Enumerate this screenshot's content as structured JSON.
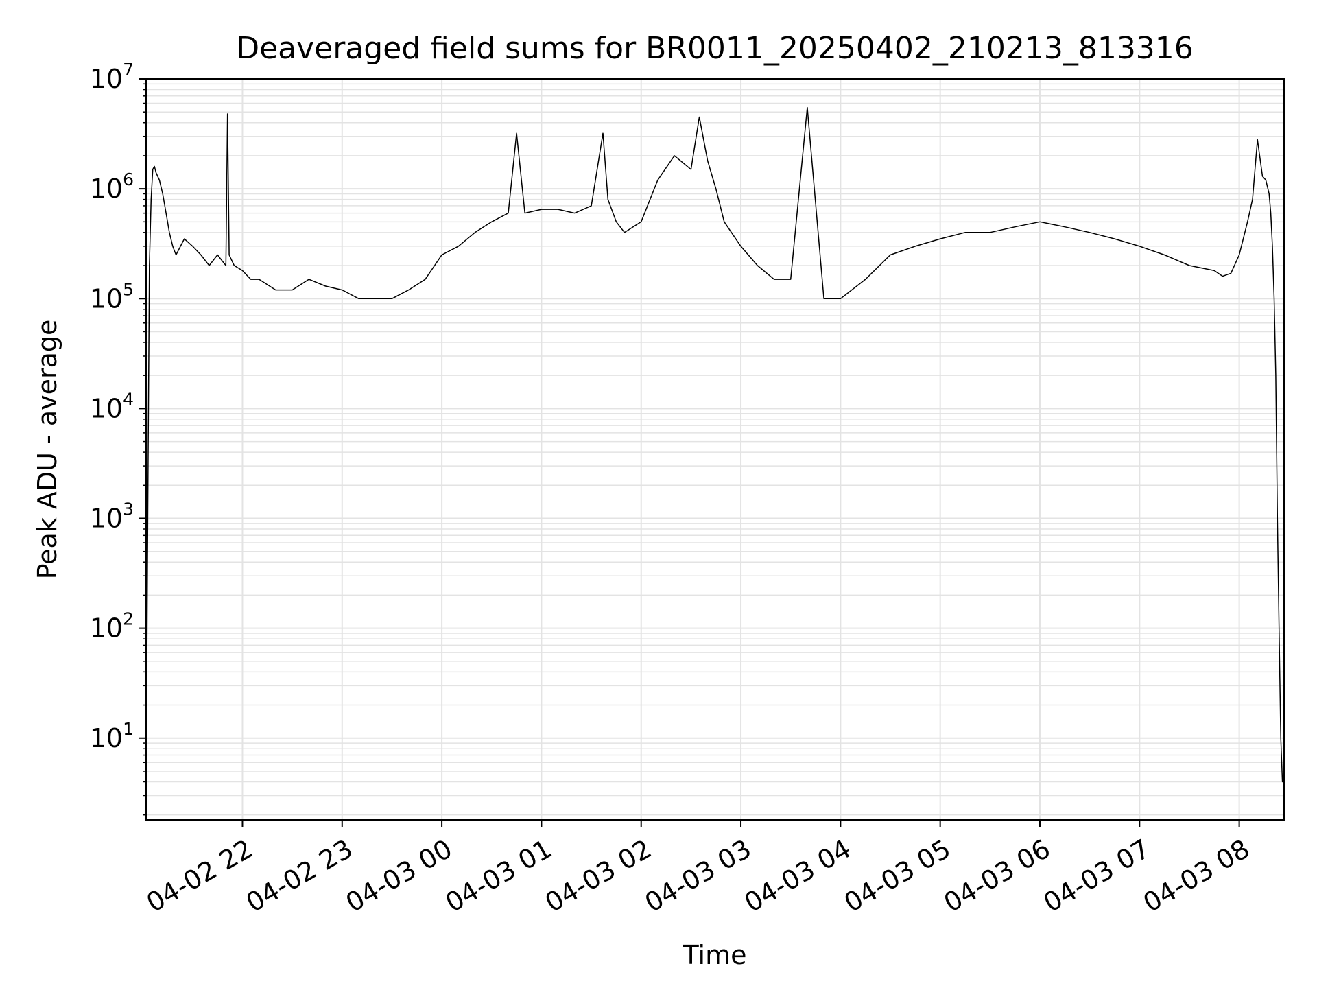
{
  "chart_data": {
    "type": "line",
    "title": "Deaveraged field sums for BR0011_20250402_210213_813316",
    "xlabel": "Time",
    "ylabel": "Peak ADU - average",
    "yscale": "log",
    "ylim": [
      1.8,
      10000000
    ],
    "xlim": [
      "2025-04-02 21:02",
      "2025-04-03 08:27"
    ],
    "grid": true,
    "line_color": "#000000",
    "grid_color": "#e3e3e3",
    "x_ticks": [
      {
        "value": "2025-04-02 22:00",
        "label": "04-02 22"
      },
      {
        "value": "2025-04-02 23:00",
        "label": "04-02 23"
      },
      {
        "value": "2025-04-03 00:00",
        "label": "04-03 00"
      },
      {
        "value": "2025-04-03 01:00",
        "label": "04-03 01"
      },
      {
        "value": "2025-04-03 02:00",
        "label": "04-03 02"
      },
      {
        "value": "2025-04-03 03:00",
        "label": "04-03 03"
      },
      {
        "value": "2025-04-03 04:00",
        "label": "04-03 04"
      },
      {
        "value": "2025-04-03 05:00",
        "label": "04-03 05"
      },
      {
        "value": "2025-04-03 06:00",
        "label": "04-03 06"
      },
      {
        "value": "2025-04-03 07:00",
        "label": "04-03 07"
      },
      {
        "value": "2025-04-03 08:00",
        "label": "04-03 08"
      }
    ],
    "y_ticks": [
      {
        "value": 10,
        "base": "10",
        "exp": "1"
      },
      {
        "value": 100,
        "base": "10",
        "exp": "2"
      },
      {
        "value": 1000,
        "base": "10",
        "exp": "3"
      },
      {
        "value": 10000,
        "base": "10",
        "exp": "4"
      },
      {
        "value": 100000,
        "base": "10",
        "exp": "5"
      },
      {
        "value": 1000000,
        "base": "10",
        "exp": "6"
      },
      {
        "value": 10000000,
        "base": "10",
        "exp": "7"
      }
    ],
    "series": [
      {
        "x": [
          "2025-04-02 21:02",
          "2025-04-02 21:02",
          "2025-04-02 21:03",
          "2025-04-02 21:04",
          "2025-04-02 21:05",
          "2025-04-02 21:06",
          "2025-04-02 21:07",
          "2025-04-02 21:08",
          "2025-04-02 21:10",
          "2025-04-02 21:12",
          "2025-04-02 21:14",
          "2025-04-02 21:16",
          "2025-04-02 21:18",
          "2025-04-02 21:20",
          "2025-04-02 21:25",
          "2025-04-02 21:30",
          "2025-04-02 21:35",
          "2025-04-02 21:40",
          "2025-04-02 21:45",
          "2025-04-02 21:50",
          "2025-04-02 21:51",
          "2025-04-02 21:52",
          "2025-04-02 21:55",
          "2025-04-02 22:00",
          "2025-04-02 22:05",
          "2025-04-02 22:10",
          "2025-04-02 22:20",
          "2025-04-02 22:30",
          "2025-04-02 22:40",
          "2025-04-02 22:50",
          "2025-04-02 23:00",
          "2025-04-02 23:10",
          "2025-04-02 23:20",
          "2025-04-02 23:30",
          "2025-04-02 23:40",
          "2025-04-02 23:50",
          "2025-04-03 00:00",
          "2025-04-03 00:10",
          "2025-04-03 00:20",
          "2025-04-03 00:30",
          "2025-04-03 00:40",
          "2025-04-03 00:45",
          "2025-04-03 00:50",
          "2025-04-03 01:00",
          "2025-04-03 01:10",
          "2025-04-03 01:20",
          "2025-04-03 01:30",
          "2025-04-03 01:37",
          "2025-04-03 01:40",
          "2025-04-03 01:45",
          "2025-04-03 01:50",
          "2025-04-03 02:00",
          "2025-04-03 02:10",
          "2025-04-03 02:20",
          "2025-04-03 02:30",
          "2025-04-03 02:35",
          "2025-04-03 02:40",
          "2025-04-03 02:45",
          "2025-04-03 02:50",
          "2025-04-03 03:00",
          "2025-04-03 03:10",
          "2025-04-03 03:20",
          "2025-04-03 03:30",
          "2025-04-03 03:40",
          "2025-04-03 03:50",
          "2025-04-03 04:00",
          "2025-04-03 04:15",
          "2025-04-03 04:30",
          "2025-04-03 04:45",
          "2025-04-03 05:00",
          "2025-04-03 05:15",
          "2025-04-03 05:30",
          "2025-04-03 05:45",
          "2025-04-03 06:00",
          "2025-04-03 06:15",
          "2025-04-03 06:30",
          "2025-04-03 06:45",
          "2025-04-03 07:00",
          "2025-04-03 07:15",
          "2025-04-03 07:30",
          "2025-04-03 07:45",
          "2025-04-03 07:50",
          "2025-04-03 07:55",
          "2025-04-03 08:00",
          "2025-04-03 08:05",
          "2025-04-03 08:08",
          "2025-04-03 08:11",
          "2025-04-03 08:14",
          "2025-04-03 08:16",
          "2025-04-03 08:18",
          "2025-04-03 08:19",
          "2025-04-03 08:20",
          "2025-04-03 08:21",
          "2025-04-03 08:22",
          "2025-04-03 08:23",
          "2025-04-03 08:24",
          "2025-04-03 08:25",
          "2025-04-03 08:26",
          "2025-04-03 08:27"
        ],
        "y": [
          4,
          4,
          1000,
          200000,
          800000,
          1500000,
          1600000,
          1400000,
          1200000,
          900000,
          600000,
          400000,
          300000,
          250000,
          350000,
          300000,
          250000,
          200000,
          250000,
          200000,
          4800000,
          250000,
          200000,
          180000,
          150000,
          150000,
          120000,
          120000,
          150000,
          130000,
          120000,
          100000,
          100000,
          100000,
          120000,
          150000,
          250000,
          300000,
          400000,
          500000,
          600000,
          3200000,
          600000,
          650000,
          650000,
          600000,
          700000,
          3200000,
          800000,
          500000,
          400000,
          500000,
          1200000,
          2000000,
          1500000,
          4500000,
          1800000,
          1000000,
          500000,
          300000,
          200000,
          150000,
          150000,
          5500000,
          100000,
          100000,
          150000,
          250000,
          300000,
          350000,
          400000,
          400000,
          450000,
          500000,
          450000,
          400000,
          350000,
          300000,
          250000,
          200000,
          180000,
          160000,
          170000,
          250000,
          500000,
          800000,
          2800000,
          1300000,
          1200000,
          900000,
          600000,
          300000,
          100000,
          20000,
          1000,
          100,
          10,
          4,
          4
        ]
      }
    ]
  }
}
